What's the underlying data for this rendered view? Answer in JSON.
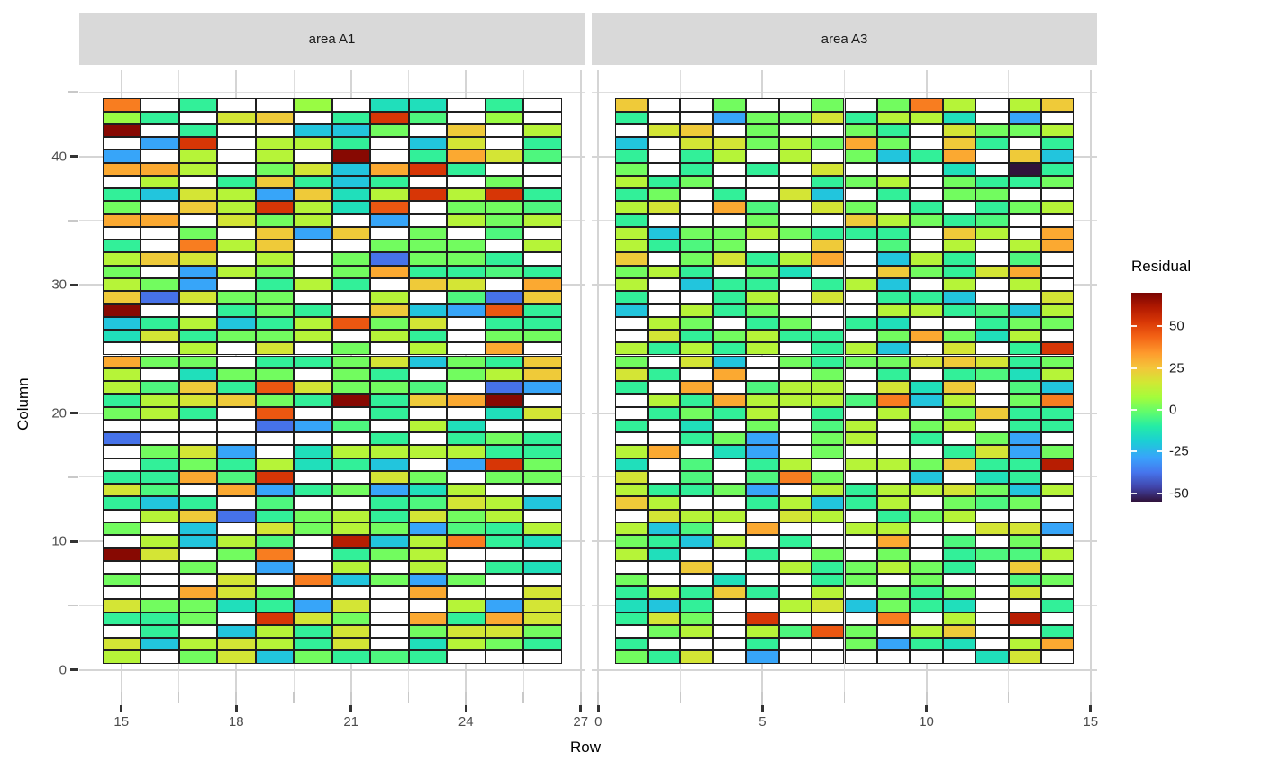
{
  "chart_data": {
    "type": "heatmap",
    "xlabel": "Row",
    "ylabel": "Column",
    "y_axis": {
      "major_ticks": [
        0,
        10,
        20,
        30,
        40
      ],
      "minor_ticks": [
        5,
        15,
        25,
        35,
        45
      ],
      "range": [
        -1.7,
        46.7
      ]
    },
    "legend": {
      "title": "Residual",
      "ticks": [
        50,
        25,
        0,
        -25,
        -50
      ],
      "domain": [
        -55,
        70
      ],
      "na_color": "#ffffff"
    },
    "color_scale": {
      "name": "turbo",
      "stops": [
        [
          0,
          "#30123b"
        ],
        [
          0.07,
          "#4145ab"
        ],
        [
          0.14,
          "#4675ed"
        ],
        [
          0.21,
          "#39a2fc"
        ],
        [
          0.29,
          "#1bcfd4"
        ],
        [
          0.36,
          "#24eca6"
        ],
        [
          0.43,
          "#61fc6c"
        ],
        [
          0.5,
          "#a4fc3b"
        ],
        [
          0.57,
          "#d1e834"
        ],
        [
          0.64,
          "#f3c63a"
        ],
        [
          0.71,
          "#fe9b2d"
        ],
        [
          0.79,
          "#f36215"
        ],
        [
          0.86,
          "#d93806"
        ],
        [
          0.93,
          "#b11901"
        ],
        [
          1,
          "#7a0402"
        ]
      ]
    },
    "encoding": {
      "comment": "each string = one grid row, listed top (Column 44) to bottom (Column 1); '.' = NA (white tile)",
      ".": null,
      "a": -55,
      "b": -38,
      "c": -28,
      "d": -21,
      "e": -14,
      "f": -8,
      "g": -4,
      "h": 1,
      "i": 6,
      "j": 11,
      "k": 17,
      "l": 24,
      "m": 31,
      "n": 39,
      "o": 46,
      "p": 53,
      "q": 60,
      "r": 68
    },
    "facets": [
      {
        "label": "area A1",
        "col_start": 15,
        "col_end": 26,
        "x_range": [
          13.9,
          27.1
        ],
        "x_major_ticks": [
          15,
          18,
          21,
          24,
          27
        ],
        "x_minor_ticks": [
          16.5,
          19.5,
          22.5,
          25.5
        ],
        "rows": [
          "n.f..i.ee.f.",
          "if.kl.fpg.i.",
          "r.f..ddh.l.j",
          ".cp.jjf.dk.f",
          "c.j.j.r.fmkg",
          "mmj.hkdmpf..",
          ".j.flfdf..h.",
          "fdkjclejpjpf",
          "h.ljpjeo.hhg",
          "mm.khj.c.jhj",
          "..h.lcl.h.g.",
          "f.njl..hhh.j",
          "jlk.j.hbhhf.",
          "h.cjh.hmffgf",
          "jhc.fjf.lk.m",
          "lbkhh..j.gbl",
          "r..fhf.ldcof",
          "dfjdfjohk.ff",
          "ekfhhj.jf.hh",
          "..j.k.h.j.m.",
          "mhh.ffhkdhfl",
          "j.ehh.hf.hjl",
          "jglfokhhg.bc",
          "fjklhfrflmr.",
          "hjf.o..f..ek",
          "....bcg.je..",
          "b......f.fhf",
          ".hkc.ejjjjff",
          ".fhfjefd.cph",
          "ffmgp..kh.hh",
          "kg.mcfhcej..",
          "fdf.g..fgkjd",
          ".jlbfhjfkhj.",
          "h.d.khjhcgfj",
          ".jdjg.qdjnfe",
          "rk.hn.fhj...",
          "..h.c.j.j.fe",
          "h..k.ndhch..",
          "..mkh...m..k",
          "khhefck..jck",
          "ffh.pkh.mfmk",
          ".f.djfk.hkkh",
          "kdjkjfk.ejhf",
          "j.hkdhfgf..."
        ]
      },
      {
        "label": "area A3",
        "col_start": 1,
        "col_end": 14,
        "x_range": [
          -0.2,
          15.2
        ],
        "x_major_ticks": [
          0,
          5,
          10,
          15
        ],
        "x_minor_ticks": [
          2.5,
          7.5,
          12.5
        ],
        "rows": [
          "l..h..h.hnj.jl",
          "f..chhkfjje.c.",
          ".kl.h..hf.khhj",
          "d.kkhjhmh.lf.f",
          "f.fj.j.hdfm.ld",
          "h.f.f.k...e.af",
          "jfh...fhj.hffh",
          "fh.f.kd.f.hh..",
          "jk.mg.kh.f.fhj",
          "f...h..ljhfg..",
          "jdhhjhfff.lj.m",
          "jfgh..l.g.j.jm",
          "l.hkfjm.djf.g.",
          "hjf.he..lhfkm.",
          "j.dff.fjd.j.j.",
          "f..fj.k.ffd..k",
          "d.jfh...jjfgdj",
          ".jh.fh.fe..fhh",
          ".kfhjff.hmhej.",
          "jfjfj.fjd.k.fp",
          "h.kd.hfhhklkfh",
          "kf.m..h.f.fgej",
          "f.m.gjj.kel.gd",
          ".jfmjjjgndj.hn",
          ".fhfj.f.j.hlff",
          "f.e.h.gj.hj.ff",
          "..fhc.hj.f.hc.",
          "jm.ec.h...fkch",
          "e.g.fj.jjhlffq",
          "k.g.gnh..d.ef.",
          "jffhc.jfjjkhdj",
          "lj..fjdfj.hgh.",
          ".kjj.kj.fhj...",
          "jdg.m..jj..kkc",
          "hfdj.f..m.g.h.",
          "je..f.h.h.fggj",
          "..l..jfhjhf.l.",
          "h..e..fh.h..gh",
          "fjflf.j.hfh.k.",
          "edf..jkdhfe..f",
          "fkh.p...n.j.q.",
          ".hj.jgoh.jl..f",
          "f...f..hcfe.jm",
          "hfk.c......ek."
        ]
      }
    ]
  }
}
